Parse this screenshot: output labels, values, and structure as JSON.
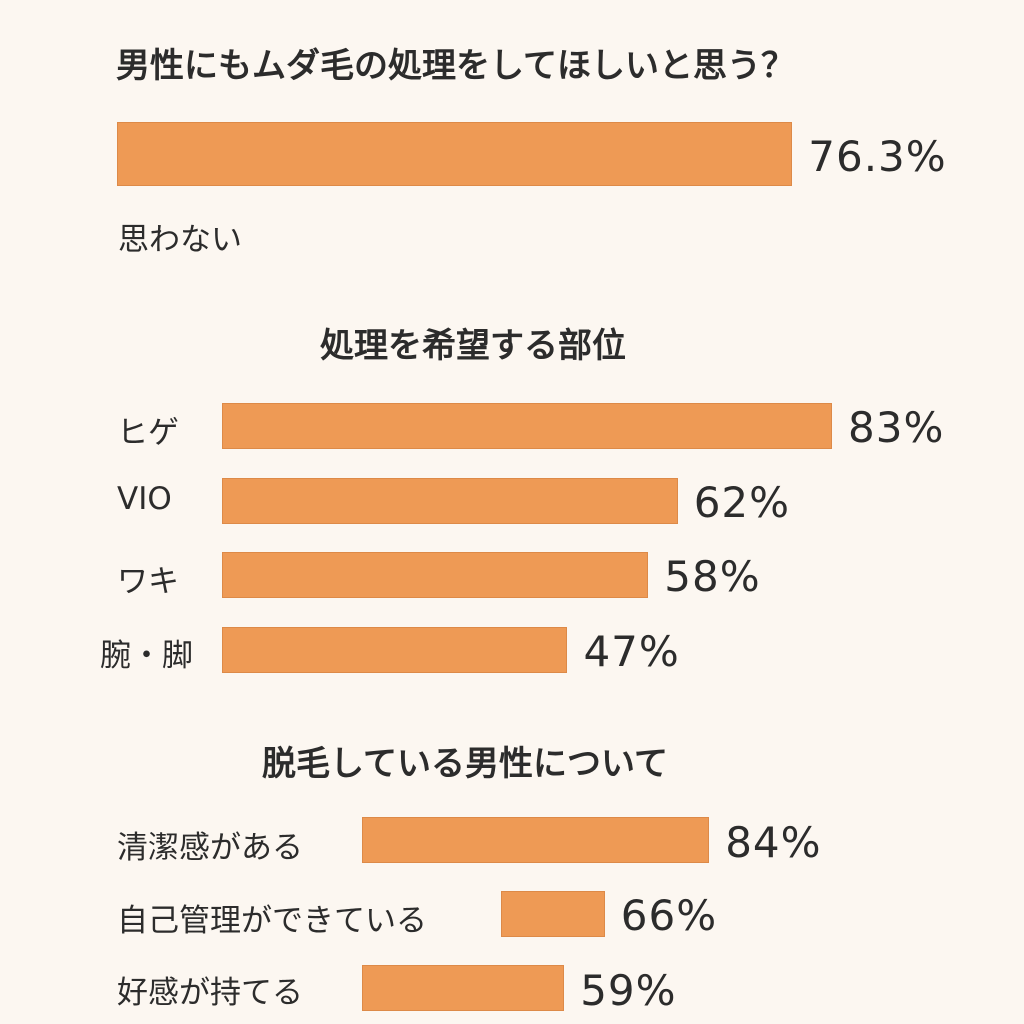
{
  "accent_color": "#ee9a55",
  "chart_data": [
    {
      "type": "bar",
      "orientation": "horizontal",
      "title": "男性にもムダ毛の処理をしてほしいと思う？",
      "categories": [
        "思わない"
      ],
      "values": [
        76.3
      ],
      "value_labels": [
        "76.3%"
      ],
      "unit": "%"
    },
    {
      "type": "bar",
      "orientation": "horizontal",
      "title": "処理を希望する部位",
      "categories": [
        "ヒゲ",
        "VIO",
        "ワキ",
        "腕・脚"
      ],
      "values": [
        83,
        62,
        58,
        47
      ],
      "value_labels": [
        "83%",
        "62%",
        "58%",
        "47%"
      ],
      "unit": "%"
    },
    {
      "type": "bar",
      "orientation": "horizontal",
      "title": "脱毛している男性について",
      "categories": [
        "清潔感がある",
        "自己管理ができている",
        "好感が持てる"
      ],
      "values": [
        84,
        66,
        59
      ],
      "value_labels": [
        "84%",
        "66%",
        "59%"
      ],
      "unit": "%"
    }
  ]
}
